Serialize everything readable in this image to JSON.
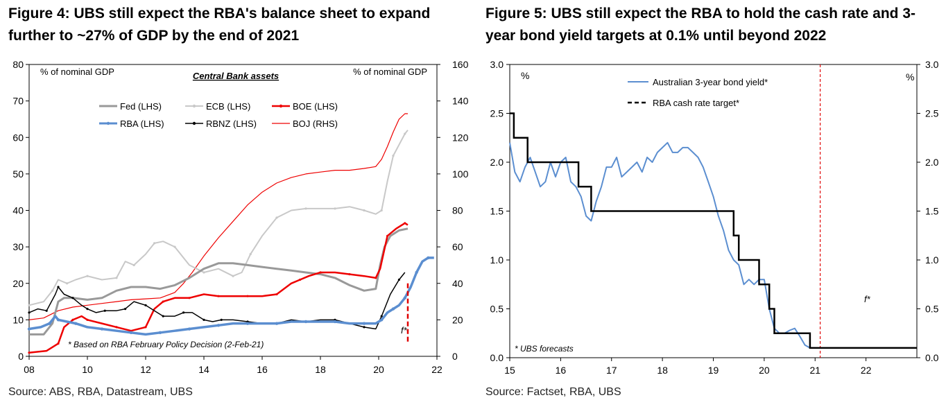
{
  "chart_data": [
    {
      "type": "line",
      "title": "Figure 4: UBS still expect the RBA's balance sheet to expand further to ~27% of GDP by the end of 2021",
      "subtitle": "Central Bank assets",
      "ylabel_left": "% of nominal GDP",
      "ylabel_right": "% of nominal GDP",
      "xlim": [
        8,
        22
      ],
      "ylim_left": [
        0,
        80
      ],
      "ylim_right": [
        0,
        160
      ],
      "x_ticks": [
        "08",
        "10",
        "12",
        "14",
        "16",
        "18",
        "20",
        "22"
      ],
      "y_ticks_left": [
        "0",
        "10",
        "20",
        "30",
        "40",
        "50",
        "60",
        "70",
        "80"
      ],
      "y_ticks_right": [
        "0",
        "20",
        "40",
        "60",
        "80",
        "100",
        "120",
        "140",
        "160"
      ],
      "annotation": "* Based on RBA February Policy Decision (2-Feb-21)",
      "forecast_label": "f*",
      "forecast_line_x": 21.0,
      "forecast_line_range": [
        9,
        20
      ],
      "legend_location": "top-center",
      "series": [
        {
          "name": "Fed (LHS)",
          "axis": "left",
          "color": "#999999",
          "style": "solid",
          "width": 3,
          "x": [
            8.0,
            8.5,
            8.8,
            9.0,
            9.2,
            9.5,
            10.0,
            10.5,
            11.0,
            11.5,
            12.0,
            12.5,
            13.0,
            13.5,
            14.0,
            14.5,
            15.0,
            15.5,
            16.0,
            16.5,
            17.0,
            17.5,
            18.0,
            18.5,
            19.0,
            19.5,
            19.9,
            20.05,
            20.2,
            20.4,
            20.7,
            21.0
          ],
          "y": [
            6,
            6,
            9,
            15,
            16,
            16,
            15.5,
            16,
            18,
            19,
            19,
            18.5,
            19.5,
            21.5,
            24,
            25.5,
            25.5,
            25,
            24.5,
            24,
            23.5,
            23,
            22.5,
            21.5,
            19.5,
            18,
            18.5,
            25,
            30,
            33,
            34.5,
            35
          ]
        },
        {
          "name": "ECB (LHS)",
          "axis": "left",
          "color": "#c8c8c8",
          "style": "solid-markers",
          "width": 2,
          "x": [
            8.0,
            8.5,
            8.8,
            9.0,
            9.3,
            9.6,
            10.0,
            10.5,
            11.0,
            11.3,
            11.6,
            12.0,
            12.3,
            12.6,
            13.0,
            13.5,
            14.0,
            14.5,
            15.0,
            15.3,
            15.6,
            16.0,
            16.5,
            17.0,
            17.5,
            18.0,
            18.5,
            19.0,
            19.5,
            19.9,
            20.1,
            20.3,
            20.5,
            20.7,
            20.9,
            21.0
          ],
          "y": [
            14,
            15,
            18,
            21,
            20,
            21,
            22,
            21,
            21.5,
            26,
            25,
            28,
            31,
            31.5,
            30,
            25,
            23,
            24,
            22,
            23,
            28,
            33,
            38,
            40,
            40.5,
            40.5,
            40.5,
            41,
            40,
            39,
            40,
            48,
            55,
            58,
            61,
            62
          ]
        },
        {
          "name": "BOE (LHS)",
          "axis": "left",
          "color": "#ee0000",
          "style": "solid-markers",
          "width": 2.5,
          "x": [
            8.0,
            8.6,
            9.0,
            9.2,
            9.5,
            9.8,
            10.0,
            10.5,
            11.0,
            11.5,
            12.0,
            12.3,
            12.6,
            13.0,
            13.5,
            14.0,
            14.5,
            15.0,
            15.5,
            16.0,
            16.5,
            17.0,
            17.3,
            17.6,
            18.0,
            18.5,
            19.0,
            19.5,
            19.9,
            20.05,
            20.3,
            20.6,
            20.9,
            21.0
          ],
          "y": [
            1,
            1.5,
            3.5,
            8,
            10,
            11,
            10,
            9,
            8,
            7,
            8,
            13,
            15,
            16,
            16,
            17,
            16.5,
            16.5,
            16.5,
            16.5,
            17,
            20,
            21,
            22,
            23,
            23,
            22.5,
            22,
            21.5,
            24,
            33,
            35,
            36.5,
            36
          ]
        },
        {
          "name": "RBA (LHS)",
          "axis": "left",
          "color": "#5b8ed0",
          "style": "solid-markers",
          "width": 3.5,
          "x": [
            8.0,
            8.4,
            8.7,
            8.9,
            9.0,
            9.3,
            9.6,
            10.0,
            10.5,
            11.0,
            11.5,
            12.0,
            12.5,
            13.0,
            13.5,
            14.0,
            14.5,
            15.0,
            15.5,
            16.0,
            16.5,
            17.0,
            17.5,
            18.0,
            18.5,
            19.0,
            19.5,
            19.9,
            20.1,
            20.3,
            20.5,
            20.7,
            20.9,
            21.1,
            21.3,
            21.5,
            21.7,
            21.9
          ],
          "y": [
            7.5,
            8,
            9,
            11,
            10,
            9.5,
            9,
            8,
            7.5,
            7,
            6.5,
            6,
            6.5,
            7,
            7.5,
            8,
            8.5,
            9,
            9,
            9,
            9,
            9.5,
            9.5,
            9.5,
            9.5,
            9,
            9,
            9,
            10,
            12,
            13,
            14,
            16,
            19,
            23,
            26,
            27,
            27
          ]
        },
        {
          "name": "RBNZ (LHS)",
          "axis": "left",
          "color": "#000000",
          "style": "solid-markers",
          "width": 1.5,
          "x": [
            8.0,
            8.3,
            8.6,
            8.9,
            9.0,
            9.2,
            9.5,
            9.8,
            10.0,
            10.3,
            10.6,
            11.0,
            11.3,
            11.6,
            12.0,
            12.3,
            12.6,
            13.0,
            13.3,
            13.6,
            14.0,
            14.3,
            14.6,
            15.0,
            15.5,
            16.0,
            16.5,
            17.0,
            17.5,
            18.0,
            18.5,
            19.0,
            19.5,
            19.9,
            20.1,
            20.4,
            20.7,
            20.9
          ],
          "y": [
            12,
            13,
            12.5,
            17,
            19,
            17,
            16,
            14,
            13,
            12,
            12.5,
            12.5,
            13,
            15,
            14,
            12.5,
            11,
            11,
            12,
            12,
            10,
            9.5,
            10,
            10,
            9.5,
            9,
            9,
            10,
            9.5,
            10,
            10,
            9,
            8,
            7.5,
            11,
            17,
            21,
            23
          ]
        },
        {
          "name": "BOJ (RHS)",
          "axis": "right",
          "color": "#ee0000",
          "style": "thin",
          "width": 1.2,
          "x": [
            8.0,
            8.5,
            9.0,
            9.5,
            10.0,
            10.5,
            11.0,
            11.5,
            12.0,
            12.5,
            13.0,
            13.3,
            13.6,
            14.0,
            14.5,
            15.0,
            15.5,
            16.0,
            16.5,
            17.0,
            17.5,
            18.0,
            18.5,
            19.0,
            19.5,
            19.9,
            20.1,
            20.3,
            20.5,
            20.7,
            20.9,
            21.0
          ],
          "y": [
            20,
            21,
            25,
            27,
            28,
            29,
            30,
            31,
            31.5,
            32,
            35,
            40,
            46,
            55,
            65,
            74,
            83,
            90,
            95,
            98,
            100,
            101,
            102,
            102,
            103,
            104,
            108,
            115,
            123,
            130,
            133,
            133
          ]
        }
      ]
    },
    {
      "type": "line",
      "title": "Figure 5: UBS still expect the RBA to hold the cash rate and 3-year bond yield targets at 0.1% until beyond 2022",
      "ylabel_left": "%",
      "ylabel_right": "%",
      "xlim": [
        15,
        23
      ],
      "ylim": [
        0,
        3.0
      ],
      "x_ticks": [
        "15",
        "16",
        "17",
        "18",
        "19",
        "20",
        "21",
        "22"
      ],
      "y_ticks": [
        "0.0",
        "0.5",
        "1.0",
        "1.5",
        "2.0",
        "2.5",
        "3.0"
      ],
      "annotation": "* UBS forecasts",
      "forecast_label": "f*",
      "forecast_line_x": 21.1,
      "legend_location": "top-center",
      "series": [
        {
          "name": "Australian 3-year bond yield*",
          "color": "#5b8ed0",
          "style": "solid",
          "width": 2,
          "x": [
            15.0,
            15.1,
            15.2,
            15.3,
            15.4,
            15.5,
            15.6,
            15.7,
            15.8,
            15.9,
            16.0,
            16.1,
            16.2,
            16.3,
            16.4,
            16.5,
            16.6,
            16.7,
            16.8,
            16.9,
            17.0,
            17.1,
            17.2,
            17.3,
            17.4,
            17.5,
            17.6,
            17.7,
            17.8,
            17.9,
            18.0,
            18.1,
            18.2,
            18.3,
            18.4,
            18.5,
            18.6,
            18.7,
            18.8,
            18.9,
            19.0,
            19.1,
            19.2,
            19.3,
            19.4,
            19.5,
            19.6,
            19.7,
            19.8,
            19.9,
            20.0,
            20.1,
            20.2,
            20.3,
            20.4,
            20.5,
            20.6,
            20.7,
            20.8,
            20.9,
            21.0
          ],
          "y": [
            2.2,
            1.9,
            1.8,
            1.95,
            2.05,
            1.9,
            1.75,
            1.8,
            2.0,
            1.85,
            2.0,
            2.05,
            1.8,
            1.75,
            1.65,
            1.45,
            1.4,
            1.6,
            1.75,
            1.95,
            1.95,
            2.05,
            1.85,
            1.9,
            1.95,
            2.0,
            1.9,
            2.05,
            2.0,
            2.1,
            2.15,
            2.2,
            2.1,
            2.1,
            2.15,
            2.15,
            2.1,
            2.05,
            1.95,
            1.8,
            1.65,
            1.45,
            1.3,
            1.1,
            1.0,
            0.95,
            0.75,
            0.8,
            0.75,
            0.8,
            0.8,
            0.5,
            0.3,
            0.25,
            0.25,
            0.28,
            0.3,
            0.22,
            0.13,
            0.1,
            0.1
          ]
        },
        {
          "name": "RBA cash rate target*",
          "color": "#000000",
          "style": "dashed",
          "width": 2.5,
          "x": [
            15.0,
            15.08,
            15.08,
            15.2,
            15.2,
            15.35,
            15.35,
            16.35,
            16.35,
            16.6,
            16.6,
            16.9,
            16.9,
            17.2,
            17.2,
            19.4,
            19.4,
            19.5,
            19.5,
            19.7,
            19.7,
            19.9,
            19.9,
            20.1,
            20.1,
            20.2,
            20.2,
            20.5,
            20.5,
            20.9,
            20.9,
            21.0,
            21.0,
            22.0,
            22.0,
            23.0
          ],
          "y": [
            2.5,
            2.5,
            2.25,
            2.25,
            2.25,
            2.25,
            2.0,
            2.0,
            1.75,
            1.75,
            1.5,
            1.5,
            1.5,
            1.5,
            1.5,
            1.5,
            1.25,
            1.25,
            1.0,
            1.0,
            1.0,
            1.0,
            0.75,
            0.75,
            0.5,
            0.5,
            0.25,
            0.25,
            0.25,
            0.25,
            0.1,
            0.1,
            0.1,
            0.1,
            0.1,
            0.1
          ]
        }
      ]
    }
  ],
  "sources": {
    "left": "Source:   ABS, RBA, Datastream, UBS",
    "right": "Source:   Factset, RBA, UBS"
  }
}
